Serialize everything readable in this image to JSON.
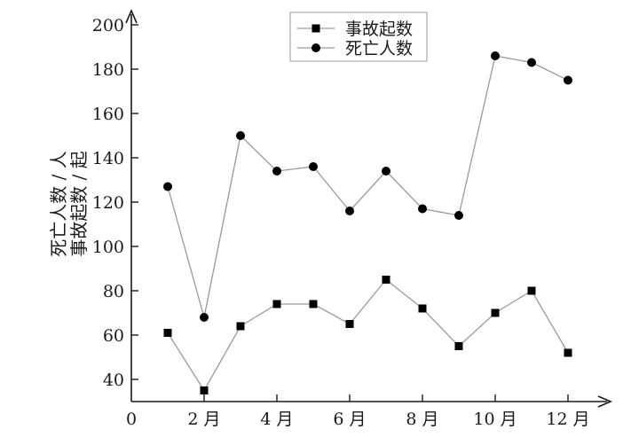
{
  "chart_data": {
    "type": "line",
    "x": [
      1,
      2,
      3,
      4,
      5,
      6,
      7,
      8,
      9,
      10,
      11,
      12
    ],
    "x_tick_values": [
      0,
      2,
      4,
      6,
      8,
      10,
      12
    ],
    "x_tick_labels": [
      "0",
      "2 月",
      "4 月",
      "6 月",
      "8 月",
      "10 月",
      "12 月"
    ],
    "y_ticks": [
      40,
      60,
      80,
      100,
      120,
      140,
      160,
      180,
      200
    ],
    "xlim": [
      0,
      13
    ],
    "ylim": [
      30,
      200
    ],
    "ylabel_lines": [
      "死亡人数 / 人",
      "事故起数 / 起"
    ],
    "grid": false,
    "legend_position": "top-center",
    "series": [
      {
        "name": "事故起数",
        "marker": "square",
        "values": [
          61,
          35,
          64,
          74,
          74,
          65,
          85,
          72,
          55,
          70,
          80,
          52
        ]
      },
      {
        "name": "死亡人数",
        "marker": "circle",
        "values": [
          127,
          68,
          150,
          134,
          136,
          116,
          134,
          117,
          114,
          186,
          183,
          175
        ]
      }
    ],
    "colors": {
      "line": "#9a9a9a",
      "marker": "#000000",
      "axis": "#1a1a1a"
    }
  }
}
